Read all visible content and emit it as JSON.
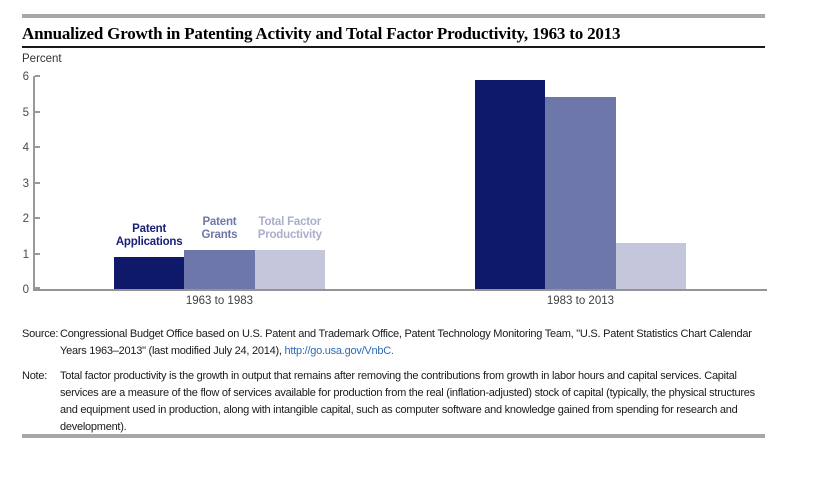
{
  "chart_data": {
    "type": "bar",
    "title": "Annualized Growth in Patenting Activity and Total Factor Productivity, 1963 to 2013",
    "ylabel": "Percent",
    "xlabel": "",
    "ylim": [
      0,
      6
    ],
    "yticks": [
      0,
      1,
      2,
      3,
      4,
      5,
      6
    ],
    "grid": false,
    "legend_position": "series-labels-above-first-group-bars",
    "categories": [
      "1963 to 1983",
      "1983 to 2013"
    ],
    "series": [
      {
        "name": "Patent Applications",
        "label_lines": [
          "Patent",
          "Applications"
        ],
        "values": [
          0.9,
          5.9
        ],
        "bar_color": "#0e1a69",
        "label_color": "#1b2078"
      },
      {
        "name": "Patent Grants",
        "label_lines": [
          "Patent",
          "Grants"
        ],
        "values": [
          1.1,
          5.4
        ],
        "bar_color": "#6e77a9",
        "label_color": "#6e77a9"
      },
      {
        "name": "Total Factor Productivity",
        "label_lines": [
          "Total Factor",
          "Productivity"
        ],
        "values": [
          1.1,
          1.3
        ],
        "bar_color": "#c4c7dc",
        "label_color": "#a9aecb"
      }
    ]
  },
  "footer": {
    "source_label": "Source:",
    "source_text": "Congressional Budget Office based on U.S. Patent and Trademark Office, Patent Technology Monitoring Team, \"U.S. Patent Statistics Chart Calendar Years 1963–2013\" (last modified July 24, 2014), ",
    "source_link": "http://go.usa.gov/VnbC",
    "source_suffix": ".",
    "note_label": "Note:",
    "note_text": "Total factor productivity is the growth in output that remains after removing the contributions from growth in labor hours and capital services. Capital services are a measure of the flow of services available for production from the real (inflation-adjusted) stock of capital (typically, the physical structures and equipment used in production, along with intangible capital, such as computer software and knowledge gained from spending for research and development)."
  },
  "colors": {
    "rule_gray": "#a7a7a7",
    "axis_gray": "#999999",
    "tick_text": "#4a4a4a",
    "link_blue": "#2b6cb8",
    "title_underline": "#1a1a1a"
  }
}
